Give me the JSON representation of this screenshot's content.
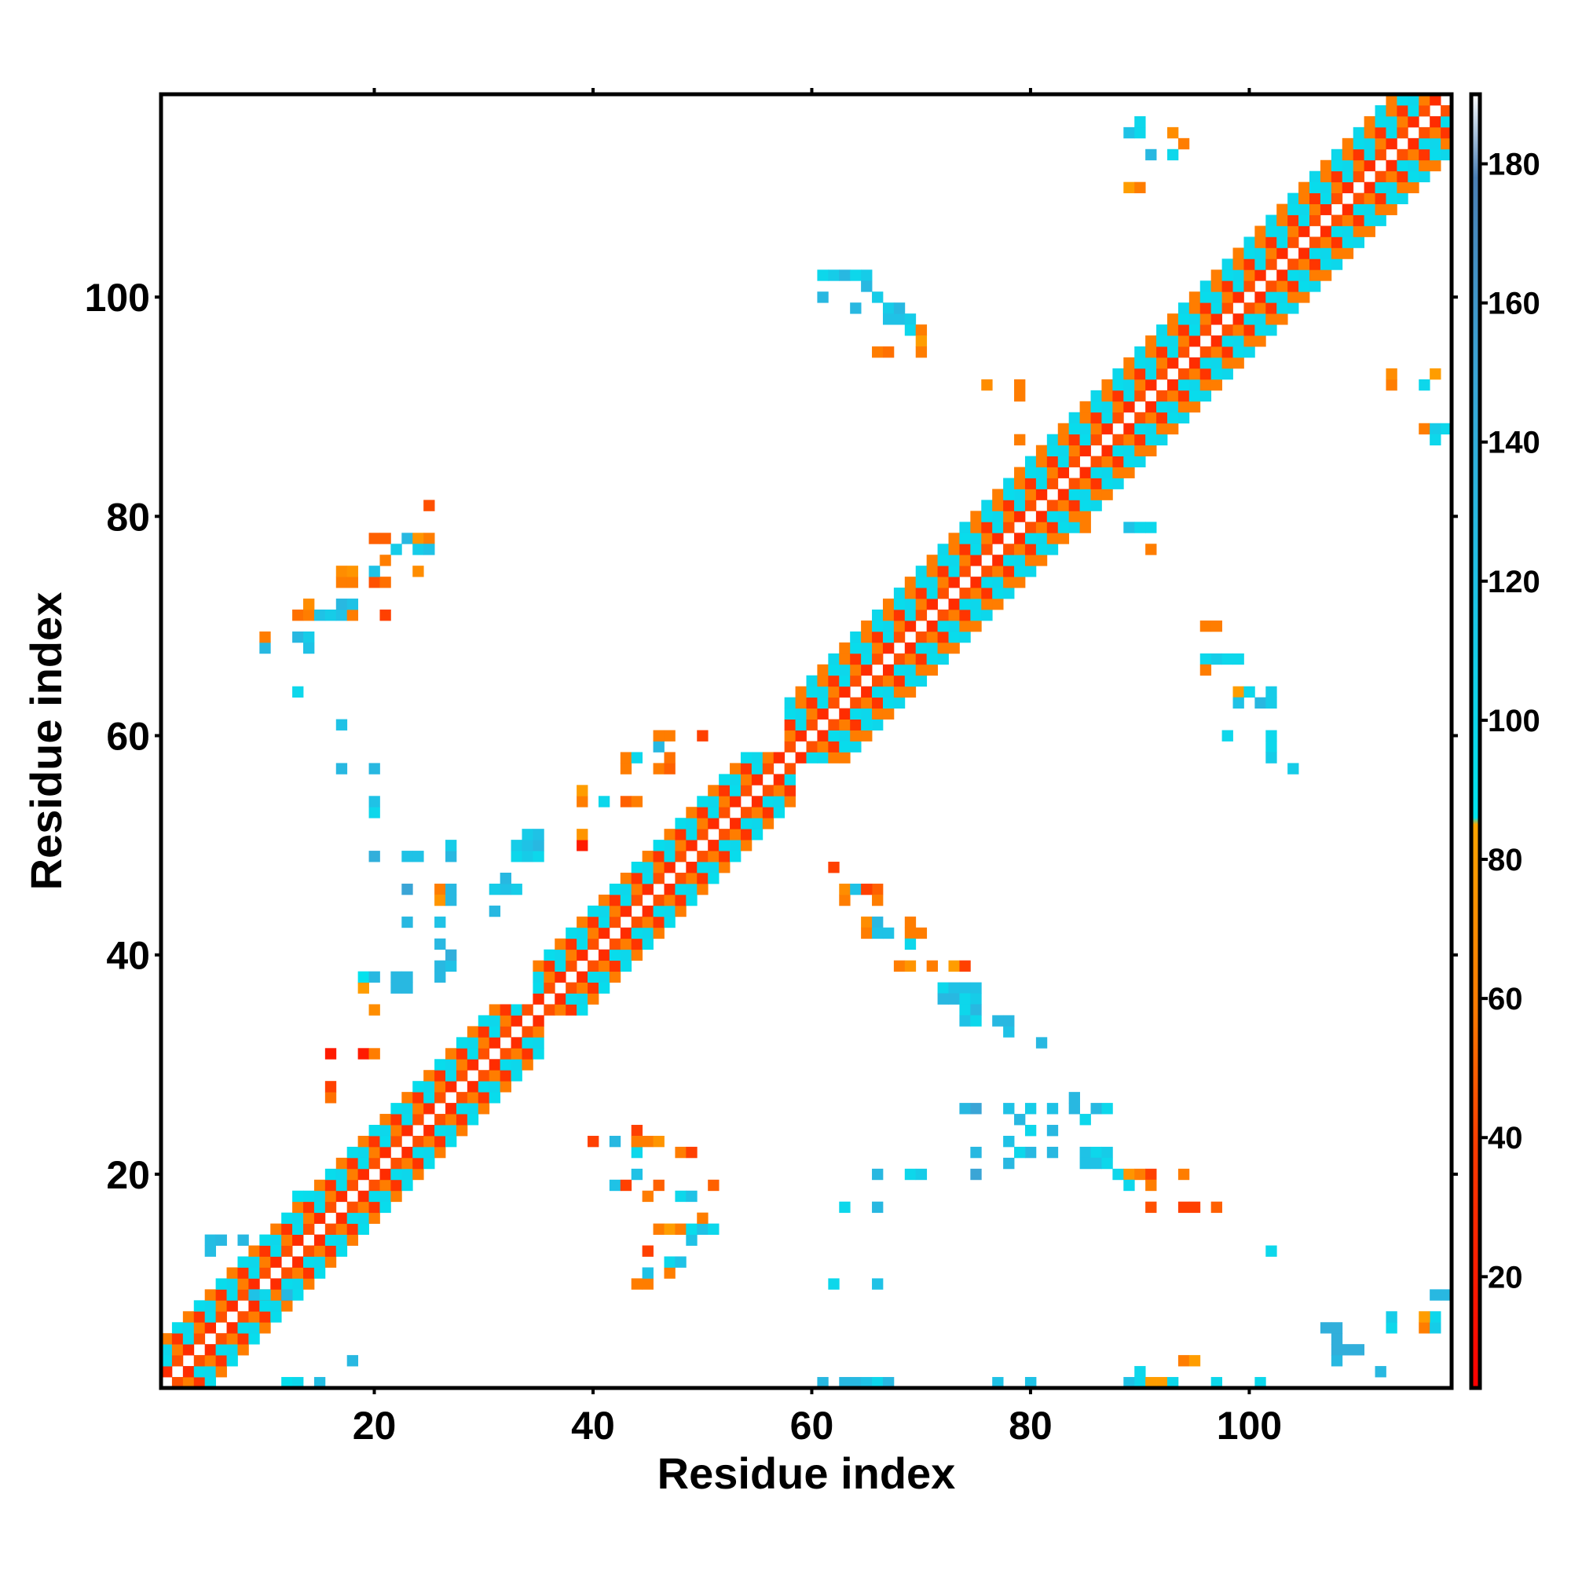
{
  "chart_data": {
    "type": "heatmap",
    "title": "",
    "xlabel": "Residue index",
    "ylabel": "Residue index",
    "xlim": [
      1,
      118
    ],
    "ylim": [
      1,
      118
    ],
    "x_ticks": [
      "20",
      "40",
      "60",
      "80",
      "100"
    ],
    "y_ticks": [
      "20",
      "40",
      "60",
      "80",
      "100"
    ],
    "colorbar": {
      "range": [
        4,
        190
      ],
      "ticks": [
        "20",
        "40",
        "60",
        "80",
        "100",
        "120",
        "140",
        "160",
        "180"
      ],
      "colors": {
        "red": "#ff0000",
        "orange_red": "#ff4000",
        "orange": "#ff8c00",
        "amber": "#ffa500",
        "cyan": "#00e5ee",
        "sky": "#1fc2e6",
        "steel": "#3aa5d6",
        "slate": "#4a7fb5"
      },
      "stops": [
        {
          "value": 4,
          "color": "#ff0000"
        },
        {
          "value": 38,
          "color": "#ff3a00"
        },
        {
          "value": 58,
          "color": "#ff7a00"
        },
        {
          "value": 85,
          "color": "#ffa500"
        },
        {
          "value": 86,
          "color": "#00e5ee"
        },
        {
          "value": 120,
          "color": "#1fc2e6"
        },
        {
          "value": 150,
          "color": "#3aa5d6"
        },
        {
          "value": 178,
          "color": "#4a7fb5"
        },
        {
          "value": 190,
          "color": "#ffffff"
        }
      ]
    },
    "diagonal_band": {
      "segments": [
        {
          "from": 1,
          "to": 34,
          "width": 4
        },
        {
          "from": 35,
          "to": 57,
          "width": 4
        },
        {
          "from": 58,
          "to": 118,
          "width": 5
        }
      ],
      "pattern_by_offset": [
        {
          "offset": 1,
          "values": [
            30,
            45
          ]
        },
        {
          "offset": 2,
          "values": [
            60,
            95
          ]
        },
        {
          "offset": 3,
          "values": [
            100,
            35
          ]
        },
        {
          "offset": 4,
          "values": [
            95,
            60
          ]
        },
        {
          "offset": 5,
          "values": [
            60,
            100
          ]
        }
      ]
    },
    "cells": [
      [
        12,
        1,
        92
      ],
      [
        13,
        1,
        100
      ],
      [
        15,
        1,
        125
      ],
      [
        18,
        3,
        130
      ],
      [
        9,
        9,
        120
      ],
      [
        10,
        9,
        100
      ],
      [
        12,
        9,
        130
      ],
      [
        5,
        13,
        125
      ],
      [
        5,
        14,
        125
      ],
      [
        6,
        14,
        130
      ],
      [
        8,
        14,
        130
      ],
      [
        13,
        18,
        92
      ],
      [
        16,
        27,
        55
      ],
      [
        16,
        28,
        40
      ],
      [
        16,
        31,
        20
      ],
      [
        19,
        31,
        20
      ],
      [
        20,
        31,
        60
      ],
      [
        20,
        35,
        70
      ],
      [
        19,
        37,
        80
      ],
      [
        19,
        38,
        90
      ],
      [
        20,
        38,
        130
      ],
      [
        22,
        37,
        130
      ],
      [
        23,
        37,
        130
      ],
      [
        22,
        38,
        130
      ],
      [
        23,
        38,
        130
      ],
      [
        26,
        38,
        130
      ],
      [
        26,
        39,
        130
      ],
      [
        27,
        39,
        120
      ],
      [
        27,
        40,
        140
      ],
      [
        26,
        41,
        130
      ],
      [
        23,
        43,
        130
      ],
      [
        26,
        43,
        120
      ],
      [
        31,
        44,
        130
      ],
      [
        23,
        46,
        150
      ],
      [
        26,
        46,
        60
      ],
      [
        26,
        45,
        75
      ],
      [
        27,
        46,
        130
      ],
      [
        27,
        45,
        130
      ],
      [
        31,
        46,
        110
      ],
      [
        32,
        46,
        120
      ],
      [
        33,
        46,
        110
      ],
      [
        32,
        47,
        130
      ],
      [
        20,
        49,
        140
      ],
      [
        23,
        49,
        120
      ],
      [
        24,
        49,
        120
      ],
      [
        27,
        49,
        130
      ],
      [
        27,
        50,
        110
      ],
      [
        33,
        49,
        100
      ],
      [
        34,
        49,
        110
      ],
      [
        35,
        49,
        100
      ],
      [
        33,
        50,
        110
      ],
      [
        34,
        50,
        120
      ],
      [
        35,
        50,
        130
      ],
      [
        34,
        51,
        110
      ],
      [
        35,
        51,
        120
      ],
      [
        39,
        50,
        20
      ],
      [
        39,
        51,
        75
      ],
      [
        20,
        53,
        100
      ],
      [
        20,
        54,
        120
      ],
      [
        39,
        54,
        60
      ],
      [
        39,
        55,
        80
      ],
      [
        41,
        54,
        100
      ],
      [
        43,
        54,
        50
      ],
      [
        44,
        54,
        60
      ],
      [
        17,
        57,
        130
      ],
      [
        20,
        57,
        130
      ],
      [
        43,
        57,
        60
      ],
      [
        43,
        58,
        60
      ],
      [
        44,
        58,
        100
      ],
      [
        46,
        57,
        60
      ],
      [
        47,
        57,
        50
      ],
      [
        47,
        58,
        55
      ],
      [
        17,
        61,
        120
      ],
      [
        46,
        59,
        130
      ],
      [
        46,
        60,
        60
      ],
      [
        47,
        60,
        60
      ],
      [
        50,
        60,
        40
      ],
      [
        13,
        64,
        100
      ],
      [
        10,
        68,
        130
      ],
      [
        10,
        69,
        60
      ],
      [
        13,
        69,
        130
      ],
      [
        14,
        68,
        120
      ],
      [
        14,
        69,
        110
      ],
      [
        13,
        71,
        55
      ],
      [
        14,
        71,
        60
      ],
      [
        15,
        71,
        120
      ],
      [
        16,
        71,
        110
      ],
      [
        17,
        71,
        120
      ],
      [
        18,
        71,
        60
      ],
      [
        14,
        72,
        70
      ],
      [
        17,
        72,
        130
      ],
      [
        18,
        72,
        120
      ],
      [
        21,
        71,
        40
      ],
      [
        17,
        74,
        60
      ],
      [
        18,
        74,
        60
      ],
      [
        17,
        75,
        70
      ],
      [
        18,
        75,
        75
      ],
      [
        20,
        74,
        45
      ],
      [
        21,
        74,
        55
      ],
      [
        20,
        75,
        120
      ],
      [
        21,
        76,
        60
      ],
      [
        20,
        78,
        50
      ],
      [
        21,
        78,
        50
      ],
      [
        22,
        77,
        110
      ],
      [
        23,
        78,
        130
      ],
      [
        24,
        78,
        75
      ],
      [
        25,
        78,
        60
      ],
      [
        24,
        77,
        110
      ],
      [
        25,
        77,
        120
      ],
      [
        24,
        75,
        70
      ],
      [
        25,
        81,
        45
      ],
      [
        62,
        10,
        100
      ],
      [
        66,
        10,
        120
      ],
      [
        61,
        1,
        130
      ],
      [
        63,
        1,
        130
      ],
      [
        64,
        1,
        130
      ],
      [
        65,
        1,
        120
      ],
      [
        66,
        1,
        100
      ],
      [
        67,
        1,
        130
      ],
      [
        77,
        1,
        120
      ],
      [
        80,
        1,
        110
      ],
      [
        97,
        1,
        100
      ],
      [
        101,
        1,
        100
      ],
      [
        80,
        1,
        120
      ],
      [
        108,
        4,
        140
      ],
      [
        108,
        5,
        140
      ],
      [
        109,
        4,
        140
      ],
      [
        110,
        4,
        140
      ],
      [
        108,
        3,
        130
      ],
      [
        112,
        2,
        130
      ],
      [
        107,
        6,
        140
      ],
      [
        108,
        6,
        140
      ],
      [
        113,
        6,
        100
      ],
      [
        113,
        7,
        110
      ],
      [
        116,
        6,
        60
      ],
      [
        117,
        6,
        110
      ],
      [
        117,
        7,
        100
      ],
      [
        116,
        7,
        80
      ],
      [
        117,
        9,
        130
      ],
      [
        118,
        9,
        130
      ],
      [
        44,
        10,
        60
      ],
      [
        45,
        10,
        60
      ],
      [
        45,
        11,
        120
      ],
      [
        47,
        11,
        60
      ],
      [
        47,
        12,
        100
      ],
      [
        48,
        12,
        120
      ],
      [
        45,
        13,
        40
      ],
      [
        46,
        15,
        60
      ],
      [
        47,
        15,
        80
      ],
      [
        48,
        15,
        60
      ],
      [
        49,
        14,
        120
      ],
      [
        49,
        15,
        95
      ],
      [
        50,
        15,
        120
      ],
      [
        50,
        16,
        60
      ],
      [
        51,
        15,
        100
      ],
      [
        45,
        18,
        60
      ],
      [
        46,
        19,
        50
      ],
      [
        48,
        18,
        100
      ],
      [
        49,
        18,
        120
      ],
      [
        51,
        19,
        50
      ],
      [
        42,
        19,
        120
      ],
      [
        43,
        19,
        40
      ],
      [
        44,
        20,
        120
      ],
      [
        44,
        22,
        100
      ],
      [
        45,
        23,
        60
      ],
      [
        44,
        23,
        70
      ],
      [
        48,
        22,
        60
      ],
      [
        49,
        22,
        40
      ],
      [
        40,
        23,
        40
      ],
      [
        42,
        23,
        130
      ],
      [
        44,
        24,
        40
      ],
      [
        44,
        23,
        60
      ],
      [
        46,
        23,
        75
      ],
      [
        63,
        17,
        100
      ],
      [
        66,
        17,
        130
      ],
      [
        66,
        20,
        130
      ],
      [
        69,
        20,
        100
      ],
      [
        70,
        20,
        110
      ],
      [
        75,
        20,
        150
      ],
      [
        78,
        21,
        130
      ],
      [
        80,
        22,
        130
      ],
      [
        82,
        22,
        130
      ],
      [
        75,
        22,
        130
      ],
      [
        79,
        22,
        100
      ],
      [
        78,
        23,
        120
      ],
      [
        80,
        24,
        100
      ],
      [
        82,
        24,
        130
      ],
      [
        74,
        26,
        130
      ],
      [
        75,
        26,
        150
      ],
      [
        78,
        26,
        120
      ],
      [
        79,
        25,
        130
      ],
      [
        80,
        26,
        110
      ],
      [
        82,
        26,
        120
      ],
      [
        84,
        26,
        130
      ],
      [
        85,
        25,
        100
      ],
      [
        86,
        26,
        130
      ],
      [
        87,
        26,
        100
      ],
      [
        84,
        27,
        130
      ],
      [
        85,
        22,
        120
      ],
      [
        86,
        22,
        100
      ],
      [
        87,
        22,
        110
      ],
      [
        85,
        21,
        120
      ],
      [
        86,
        21,
        120
      ],
      [
        87,
        21,
        100
      ],
      [
        88,
        20,
        100
      ],
      [
        89,
        20,
        75
      ],
      [
        90,
        20,
        60
      ],
      [
        89,
        19,
        100
      ],
      [
        91,
        20,
        40
      ],
      [
        91,
        19,
        60
      ],
      [
        94,
        20,
        60
      ],
      [
        91,
        17,
        45
      ],
      [
        94,
        17,
        40
      ],
      [
        95,
        17,
        40
      ],
      [
        97,
        17,
        50
      ],
      [
        102,
        13,
        100
      ],
      [
        62,
        48,
        40
      ],
      [
        63,
        45,
        60
      ],
      [
        63,
        46,
        70
      ],
      [
        64,
        46,
        120
      ],
      [
        66,
        46,
        50
      ],
      [
        65,
        46,
        40
      ],
      [
        66,
        45,
        60
      ],
      [
        65,
        43,
        70
      ],
      [
        66,
        43,
        130
      ],
      [
        65,
        42,
        60
      ],
      [
        66,
        42,
        120
      ],
      [
        67,
        42,
        120
      ],
      [
        69,
        42,
        60
      ],
      [
        69,
        43,
        60
      ],
      [
        69,
        41,
        100
      ],
      [
        70,
        42,
        60
      ],
      [
        68,
        39,
        60
      ],
      [
        69,
        39,
        75
      ],
      [
        71,
        39,
        60
      ],
      [
        73,
        39,
        80
      ],
      [
        74,
        39,
        40
      ],
      [
        72,
        37,
        100
      ],
      [
        73,
        37,
        120
      ],
      [
        74,
        37,
        120
      ],
      [
        75,
        37,
        120
      ],
      [
        72,
        36,
        130
      ],
      [
        73,
        36,
        130
      ],
      [
        74,
        36,
        100
      ],
      [
        75,
        36,
        110
      ],
      [
        74,
        35,
        100
      ],
      [
        75,
        35,
        130
      ],
      [
        74,
        34,
        120
      ],
      [
        75,
        34,
        100
      ],
      [
        77,
        34,
        130
      ],
      [
        78,
        33,
        120
      ],
      [
        78,
        34,
        130
      ],
      [
        81,
        32,
        130
      ],
      [
        92,
        1,
        80
      ],
      [
        93,
        1,
        100
      ],
      [
        94,
        3,
        60
      ],
      [
        95,
        3,
        80
      ],
      [
        89,
        1,
        120
      ],
      [
        90,
        2,
        100
      ],
      [
        90,
        1,
        100
      ],
      [
        91,
        1,
        80
      ],
      [
        61,
        100,
        130
      ],
      [
        61,
        102,
        100
      ],
      [
        62,
        102,
        110
      ],
      [
        63,
        102,
        130
      ],
      [
        64,
        102,
        100
      ],
      [
        65,
        102,
        110
      ],
      [
        65,
        101,
        130
      ],
      [
        66,
        100,
        110
      ],
      [
        64,
        99,
        130
      ],
      [
        67,
        99,
        110
      ],
      [
        68,
        98,
        120
      ],
      [
        68,
        99,
        130
      ],
      [
        67,
        98,
        120
      ],
      [
        69,
        98,
        110
      ],
      [
        69,
        97,
        100
      ],
      [
        70,
        97,
        60
      ],
      [
        70,
        96,
        80
      ],
      [
        66,
        95,
        60
      ],
      [
        67,
        95,
        55
      ],
      [
        70,
        95,
        60
      ],
      [
        89,
        115,
        120
      ],
      [
        90,
        115,
        100
      ],
      [
        90,
        116,
        100
      ],
      [
        91,
        113,
        130
      ],
      [
        93,
        115,
        70
      ],
      [
        93,
        113,
        100
      ],
      [
        94,
        114,
        60
      ],
      [
        89,
        110,
        80
      ],
      [
        90,
        110,
        60
      ],
      [
        76,
        92,
        70
      ],
      [
        79,
        91,
        60
      ],
      [
        79,
        92,
        60
      ],
      [
        79,
        87,
        60
      ],
      [
        85,
        79,
        60
      ],
      [
        89,
        79,
        120
      ],
      [
        90,
        79,
        100
      ],
      [
        91,
        79,
        100
      ],
      [
        91,
        77,
        60
      ],
      [
        96,
        70,
        60
      ],
      [
        97,
        70,
        60
      ],
      [
        96,
        67,
        100
      ],
      [
        96,
        66,
        60
      ],
      [
        97,
        67,
        110
      ],
      [
        98,
        67,
        100
      ],
      [
        99,
        67,
        100
      ],
      [
        99,
        64,
        80
      ],
      [
        99,
        63,
        120
      ],
      [
        100,
        64,
        100
      ],
      [
        101,
        63,
        130
      ],
      [
        102,
        63,
        110
      ],
      [
        102,
        64,
        110
      ],
      [
        98,
        60,
        100
      ],
      [
        102,
        60,
        100
      ],
      [
        102,
        59,
        100
      ],
      [
        102,
        58,
        110
      ],
      [
        104,
        57,
        110
      ],
      [
        113,
        92,
        60
      ],
      [
        113,
        93,
        70
      ],
      [
        116,
        92,
        100
      ],
      [
        117,
        93,
        80
      ],
      [
        116,
        88,
        60
      ],
      [
        117,
        88,
        110
      ],
      [
        118,
        88,
        100
      ],
      [
        117,
        87,
        100
      ]
    ]
  }
}
